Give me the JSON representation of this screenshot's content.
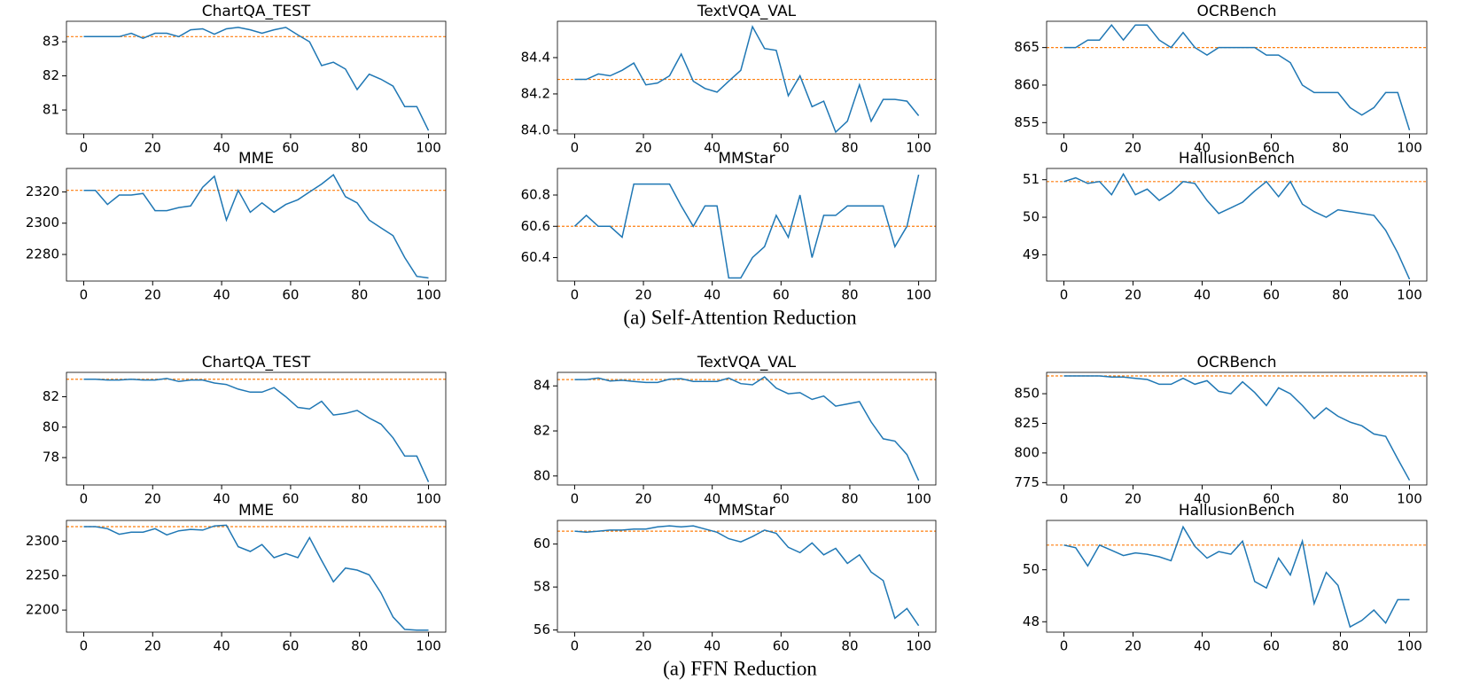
{
  "captions": [
    "(a) Self-Attention Reduction",
    "(a) FFN Reduction"
  ],
  "chart_data": [
    {
      "type": "line",
      "title": "ChartQA_TEST",
      "color": "#1f77b4",
      "reference_line": 83.15,
      "reference_color": "#ff7f0e",
      "x": [
        0,
        3.4,
        6.9,
        10.3,
        13.8,
        17.2,
        20.7,
        24.1,
        27.6,
        31.0,
        34.5,
        37.9,
        41.4,
        44.8,
        48.3,
        51.7,
        55.2,
        58.6,
        62.1,
        65.5,
        69.0,
        72.4,
        75.9,
        79.3,
        82.8,
        86.2,
        89.7,
        93.1,
        96.6,
        100
      ],
      "values": [
        83.15,
        83.15,
        83.15,
        83.15,
        83.25,
        83.1,
        83.25,
        83.25,
        83.15,
        83.35,
        83.38,
        83.22,
        83.38,
        83.42,
        83.35,
        83.25,
        83.35,
        83.42,
        83.2,
        83.0,
        82.3,
        82.4,
        82.2,
        81.6,
        82.05,
        81.9,
        81.7,
        81.1,
        81.1,
        80.4
      ],
      "xlim": [
        -5,
        105
      ],
      "xticks": [
        0,
        20,
        40,
        60,
        80,
        100
      ],
      "ylim": [
        80.3,
        83.6
      ],
      "yticks": [
        81,
        82,
        83
      ]
    },
    {
      "type": "line",
      "title": "TextVQA_VAL",
      "color": "#1f77b4",
      "reference_line": 84.28,
      "reference_color": "#ff7f0e",
      "x": [
        0,
        3.4,
        6.9,
        10.3,
        13.8,
        17.2,
        20.7,
        24.1,
        27.6,
        31.0,
        34.5,
        37.9,
        41.4,
        44.8,
        48.3,
        51.7,
        55.2,
        58.6,
        62.1,
        65.5,
        69.0,
        72.4,
        75.9,
        79.3,
        82.8,
        86.2,
        89.7,
        93.1,
        96.6,
        100
      ],
      "values": [
        84.28,
        84.28,
        84.31,
        84.3,
        84.33,
        84.37,
        84.25,
        84.26,
        84.3,
        84.42,
        84.27,
        84.23,
        84.21,
        84.27,
        84.33,
        84.57,
        84.45,
        84.44,
        84.19,
        84.3,
        84.13,
        84.16,
        83.99,
        84.05,
        84.25,
        84.05,
        84.17,
        84.17,
        84.16,
        84.08
      ],
      "xlim": [
        -5,
        105
      ],
      "xticks": [
        0,
        20,
        40,
        60,
        80,
        100
      ],
      "ylim": [
        83.98,
        84.6
      ],
      "yticks": [
        {
          "value": 84,
          "label": "84.0"
        },
        84.2,
        84.4
      ]
    },
    {
      "type": "line",
      "title": "OCRBench",
      "color": "#1f77b4",
      "reference_line": 865,
      "reference_color": "#ff7f0e",
      "x": [
        0,
        3.4,
        6.9,
        10.3,
        13.8,
        17.2,
        20.7,
        24.1,
        27.6,
        31.0,
        34.5,
        37.9,
        41.4,
        44.8,
        48.3,
        51.7,
        55.2,
        58.6,
        62.1,
        65.5,
        69.0,
        72.4,
        75.9,
        79.3,
        82.8,
        86.2,
        89.7,
        93.1,
        96.6,
        100
      ],
      "values": [
        865,
        865,
        866,
        866,
        868,
        866,
        868,
        868,
        866,
        865,
        867,
        865,
        864,
        865,
        865,
        865,
        865,
        864,
        864,
        863,
        860,
        859,
        859,
        859,
        857,
        856,
        857,
        859,
        859,
        854
      ],
      "xlim": [
        -5,
        105
      ],
      "xticks": [
        0,
        20,
        40,
        60,
        80,
        100
      ],
      "ylim": [
        853.5,
        868.5
      ],
      "yticks": [
        855,
        860,
        865
      ]
    },
    {
      "type": "line",
      "title": "MME",
      "color": "#1f77b4",
      "reference_line": 2321,
      "reference_color": "#ff7f0e",
      "x": [
        0,
        3.4,
        6.9,
        10.3,
        13.8,
        17.2,
        20.7,
        24.1,
        27.6,
        31.0,
        34.5,
        37.9,
        41.4,
        44.8,
        48.3,
        51.7,
        55.2,
        58.6,
        62.1,
        65.5,
        69.0,
        72.4,
        75.9,
        79.3,
        82.8,
        86.2,
        89.7,
        93.1,
        96.6,
        100
      ],
      "values": [
        2321,
        2321,
        2312,
        2318,
        2318,
        2319,
        2308,
        2308,
        2310,
        2311,
        2323,
        2330,
        2302,
        2321,
        2307,
        2313,
        2307,
        2312,
        2315,
        2320,
        2325,
        2331,
        2317,
        2313,
        2302,
        2297,
        2292,
        2278,
        2266,
        2265
      ],
      "xlim": [
        -5,
        105
      ],
      "xticks": [
        0,
        20,
        40,
        60,
        80,
        100
      ],
      "ylim": [
        2263,
        2335
      ],
      "yticks": [
        2280,
        2300,
        2320
      ]
    },
    {
      "type": "line",
      "title": "MMStar",
      "color": "#1f77b4",
      "reference_line": 60.6,
      "reference_color": "#ff7f0e",
      "x": [
        0,
        3.4,
        6.9,
        10.3,
        13.8,
        17.2,
        20.7,
        24.1,
        27.6,
        31.0,
        34.5,
        37.9,
        41.4,
        44.8,
        48.3,
        51.7,
        55.2,
        58.6,
        62.1,
        65.5,
        69.0,
        72.4,
        75.9,
        79.3,
        82.8,
        86.2,
        89.7,
        93.1,
        96.6,
        100
      ],
      "values": [
        60.6,
        60.67,
        60.6,
        60.6,
        60.53,
        60.87,
        60.87,
        60.87,
        60.87,
        60.73,
        60.6,
        60.73,
        60.73,
        60.27,
        60.27,
        60.4,
        60.47,
        60.67,
        60.53,
        60.8,
        60.4,
        60.67,
        60.67,
        60.73,
        60.73,
        60.73,
        60.73,
        60.47,
        60.6,
        60.93
      ],
      "xlim": [
        -5,
        105
      ],
      "xticks": [
        0,
        20,
        40,
        60,
        80,
        100
      ],
      "ylim": [
        60.25,
        60.97
      ],
      "yticks": [
        60.4,
        60.6,
        60.8
      ]
    },
    {
      "type": "line",
      "title": "HallusionBench",
      "color": "#1f77b4",
      "reference_line": 50.95,
      "reference_color": "#ff7f0e",
      "x": [
        0,
        3.4,
        6.9,
        10.3,
        13.8,
        17.2,
        20.7,
        24.1,
        27.6,
        31.0,
        34.5,
        37.9,
        41.4,
        44.8,
        48.3,
        51.7,
        55.2,
        58.6,
        62.1,
        65.5,
        69.0,
        72.4,
        75.9,
        79.3,
        82.8,
        86.2,
        89.7,
        93.1,
        96.6,
        100
      ],
      "values": [
        50.95,
        51.05,
        50.9,
        50.95,
        50.6,
        51.15,
        50.6,
        50.75,
        50.45,
        50.65,
        50.95,
        50.9,
        50.45,
        50.1,
        50.25,
        50.4,
        50.7,
        50.95,
        50.55,
        50.95,
        50.35,
        50.15,
        50.0,
        50.2,
        50.15,
        50.1,
        50.05,
        49.65,
        49.05,
        48.35
      ],
      "xlim": [
        -5,
        105
      ],
      "xticks": [
        0,
        20,
        40,
        60,
        80,
        100
      ],
      "ylim": [
        48.3,
        51.3
      ],
      "yticks": [
        49,
        50,
        51
      ]
    },
    {
      "type": "line",
      "title": "ChartQA_TEST",
      "color": "#1f77b4",
      "reference_line": 83.15,
      "reference_color": "#ff7f0e",
      "x": [
        0,
        3.4,
        6.9,
        10.3,
        13.8,
        17.2,
        20.7,
        24.1,
        27.6,
        31.0,
        34.5,
        37.9,
        41.4,
        44.8,
        48.3,
        51.7,
        55.2,
        58.6,
        62.1,
        65.5,
        69.0,
        72.4,
        75.9,
        79.3,
        82.8,
        86.2,
        89.7,
        93.1,
        96.6,
        100
      ],
      "values": [
        83.15,
        83.15,
        83.1,
        83.1,
        83.15,
        83.1,
        83.1,
        83.2,
        83.0,
        83.1,
        83.1,
        82.9,
        82.8,
        82.5,
        82.3,
        82.3,
        82.6,
        82.0,
        81.3,
        81.2,
        81.7,
        80.8,
        80.9,
        81.1,
        80.6,
        80.2,
        79.3,
        78.1,
        78.1,
        76.4
      ],
      "xlim": [
        -5,
        105
      ],
      "xticks": [
        0,
        20,
        40,
        60,
        80,
        100
      ],
      "ylim": [
        76.2,
        83.6
      ],
      "yticks": [
        78,
        80,
        82
      ]
    },
    {
      "type": "line",
      "title": "TextVQA_VAL",
      "color": "#1f77b4",
      "reference_line": 84.28,
      "reference_color": "#ff7f0e",
      "x": [
        0,
        3.4,
        6.9,
        10.3,
        13.8,
        17.2,
        20.7,
        24.1,
        27.6,
        31.0,
        34.5,
        37.9,
        41.4,
        44.8,
        48.3,
        51.7,
        55.2,
        58.6,
        62.1,
        65.5,
        69.0,
        72.4,
        75.9,
        79.3,
        82.8,
        86.2,
        89.7,
        93.1,
        96.6,
        100
      ],
      "values": [
        84.28,
        84.28,
        84.35,
        84.22,
        84.25,
        84.2,
        84.15,
        84.15,
        84.3,
        84.32,
        84.2,
        84.2,
        84.2,
        84.35,
        84.1,
        84.05,
        84.4,
        83.9,
        83.65,
        83.7,
        83.4,
        83.55,
        83.1,
        83.2,
        83.3,
        82.4,
        81.65,
        81.55,
        80.95,
        79.8
      ],
      "xlim": [
        -5,
        105
      ],
      "xticks": [
        0,
        20,
        40,
        60,
        80,
        100
      ],
      "ylim": [
        79.6,
        84.6
      ],
      "yticks": [
        80,
        82,
        84
      ]
    },
    {
      "type": "line",
      "title": "OCRBench",
      "color": "#1f77b4",
      "reference_line": 865,
      "reference_color": "#ff7f0e",
      "x": [
        0,
        3.4,
        6.9,
        10.3,
        13.8,
        17.2,
        20.7,
        24.1,
        27.6,
        31.0,
        34.5,
        37.9,
        41.4,
        44.8,
        48.3,
        51.7,
        55.2,
        58.6,
        62.1,
        65.5,
        69.0,
        72.4,
        75.9,
        79.3,
        82.8,
        86.2,
        89.7,
        93.1,
        96.6,
        100
      ],
      "values": [
        865,
        865,
        865,
        865,
        864,
        864,
        863,
        862,
        858,
        858,
        863,
        858,
        861,
        852,
        850,
        860,
        851,
        840,
        855,
        850,
        840,
        829,
        838,
        831,
        826,
        823,
        816,
        814,
        795,
        777
      ],
      "xlim": [
        -5,
        105
      ],
      "xticks": [
        0,
        20,
        40,
        60,
        80,
        100
      ],
      "ylim": [
        773,
        868
      ],
      "yticks": [
        775,
        800,
        825,
        850
      ]
    },
    {
      "type": "line",
      "title": "MME",
      "color": "#1f77b4",
      "reference_line": 2321,
      "reference_color": "#ff7f0e",
      "x": [
        0,
        3.4,
        6.9,
        10.3,
        13.8,
        17.2,
        20.7,
        24.1,
        27.6,
        31.0,
        34.5,
        37.9,
        41.4,
        44.8,
        48.3,
        51.7,
        55.2,
        58.6,
        62.1,
        65.5,
        69.0,
        72.4,
        75.9,
        79.3,
        82.8,
        86.2,
        89.7,
        93.1,
        96.6,
        100
      ],
      "values": [
        2321,
        2321,
        2318,
        2310,
        2313,
        2313,
        2318,
        2309,
        2315,
        2317,
        2316,
        2322,
        2323,
        2292,
        2285,
        2295,
        2276,
        2282,
        2276,
        2305,
        2272,
        2241,
        2261,
        2258,
        2251,
        2225,
        2190,
        2172,
        2171,
        2171
      ],
      "xlim": [
        -5,
        105
      ],
      "xticks": [
        0,
        20,
        40,
        60,
        80,
        100
      ],
      "ylim": [
        2168,
        2330
      ],
      "yticks": [
        2200,
        2250,
        2300
      ]
    },
    {
      "type": "line",
      "title": "MMStar",
      "color": "#1f77b4",
      "reference_line": 60.6,
      "reference_color": "#ff7f0e",
      "x": [
        0,
        3.4,
        6.9,
        10.3,
        13.8,
        17.2,
        20.7,
        24.1,
        27.6,
        31.0,
        34.5,
        37.9,
        41.4,
        44.8,
        48.3,
        51.7,
        55.2,
        58.6,
        62.1,
        65.5,
        69.0,
        72.4,
        75.9,
        79.3,
        82.8,
        86.2,
        89.7,
        93.1,
        96.6,
        100
      ],
      "values": [
        60.6,
        60.55,
        60.6,
        60.65,
        60.65,
        60.7,
        60.7,
        60.8,
        60.85,
        60.8,
        60.85,
        60.7,
        60.55,
        60.25,
        60.1,
        60.35,
        60.65,
        60.5,
        59.85,
        59.6,
        60.05,
        59.5,
        59.8,
        59.1,
        59.5,
        58.7,
        58.3,
        56.55,
        57.0,
        56.2
      ],
      "xlim": [
        -5,
        105
      ],
      "xticks": [
        0,
        20,
        40,
        60,
        80,
        100
      ],
      "ylim": [
        55.9,
        61.1
      ],
      "yticks": [
        56,
        58,
        60
      ]
    },
    {
      "type": "line",
      "title": "HallusionBench",
      "color": "#1f77b4",
      "reference_line": 50.95,
      "reference_color": "#ff7f0e",
      "x": [
        0,
        3.4,
        6.9,
        10.3,
        13.8,
        17.2,
        20.7,
        24.1,
        27.6,
        31.0,
        34.5,
        37.9,
        41.4,
        44.8,
        48.3,
        51.7,
        55.2,
        58.6,
        62.1,
        65.5,
        69.0,
        72.4,
        75.9,
        79.3,
        82.8,
        86.2,
        89.7,
        93.1,
        96.6,
        100
      ],
      "values": [
        50.95,
        50.85,
        50.15,
        50.95,
        50.75,
        50.55,
        50.65,
        50.6,
        50.5,
        50.35,
        51.65,
        50.9,
        50.45,
        50.7,
        50.6,
        51.1,
        49.55,
        49.3,
        50.45,
        49.8,
        51.1,
        48.7,
        49.9,
        49.4,
        47.8,
        48.05,
        48.45,
        47.95,
        48.85,
        48.85
      ],
      "xlim": [
        -5,
        105
      ],
      "xticks": [
        0,
        20,
        40,
        60,
        80,
        100
      ],
      "ylim": [
        47.6,
        51.9
      ],
      "yticks": [
        48,
        50
      ]
    }
  ]
}
